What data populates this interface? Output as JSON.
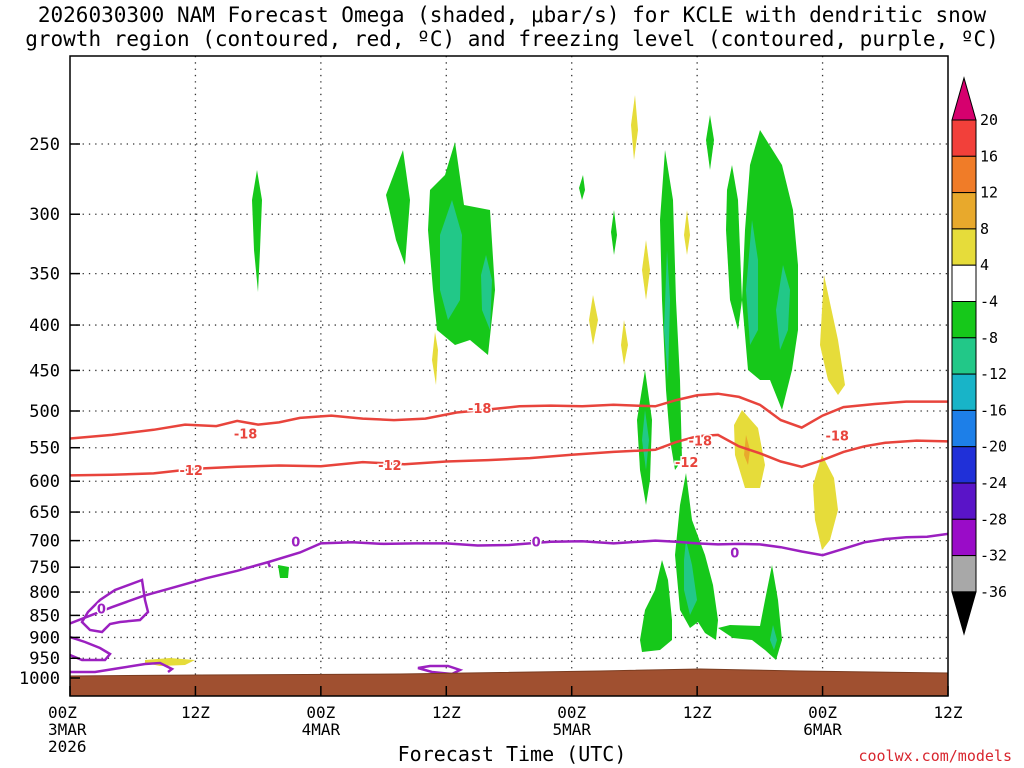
{
  "title_line1": "2026030300 NAM Forecast Omega (shaded, μbar/s) for KCLE with dendritic snow",
  "title_line2": "growth region (contoured, red, ºC) and freezing level (contoured, purple, ºC)",
  "credit": "coolwx.com/models",
  "chart_data": {
    "type": "heatmap",
    "xlabel": "Forecast Time (UTC)",
    "x_ticks": [
      {
        "hour": 0,
        "lines": [
          "00Z",
          "3MAR",
          "2026"
        ]
      },
      {
        "hour": 12,
        "lines": [
          "12Z"
        ]
      },
      {
        "hour": 24,
        "lines": [
          "00Z",
          "4MAR"
        ]
      },
      {
        "hour": 36,
        "lines": [
          "12Z"
        ]
      },
      {
        "hour": 48,
        "lines": [
          "00Z",
          "5MAR"
        ]
      },
      {
        "hour": 60,
        "lines": [
          "12Z"
        ]
      },
      {
        "hour": 72,
        "lines": [
          "00Z",
          "6MAR"
        ]
      },
      {
        "hour": 84,
        "lines": [
          "12Z"
        ]
      }
    ],
    "xlim": [
      0,
      84
    ],
    "y_ticks": [
      250,
      300,
      350,
      400,
      450,
      500,
      550,
      600,
      650,
      700,
      750,
      800,
      850,
      900,
      950,
      1000
    ],
    "y_axis": "pressure (hPa), inverted",
    "colorbar": {
      "labels": [
        20,
        16,
        12,
        8,
        4,
        -4,
        -8,
        -12,
        -16,
        -20,
        -24,
        -28,
        -32,
        -36
      ],
      "colors": [
        "#d6006e",
        "#f2403a",
        "#f07c28",
        "#e8a92c",
        "#e6dc3a",
        "#ffffff",
        "#16c81a",
        "#22c888",
        "#18b4c8",
        "#1d7fe8",
        "#2030d8",
        "#5a14c8",
        "#9a0cc8",
        "#a8a8a8",
        "#000000"
      ]
    },
    "contour_labels": [
      {
        "text": "-18",
        "hour": 16.8,
        "p": 530,
        "color": "#e8443c"
      },
      {
        "text": "-18",
        "hour": 39.2,
        "p": 496,
        "color": "#e8443c"
      },
      {
        "text": "-18",
        "hour": 60.3,
        "p": 540,
        "color": "#e8443c"
      },
      {
        "text": "-18",
        "hour": 73.4,
        "p": 533,
        "color": "#e8443c"
      },
      {
        "text": "-12",
        "hour": 11.6,
        "p": 583,
        "color": "#e8443c"
      },
      {
        "text": "-12",
        "hour": 30.6,
        "p": 575,
        "color": "#e8443c"
      },
      {
        "text": "-12",
        "hour": 59.0,
        "p": 571,
        "color": "#e8443c"
      },
      {
        "text": "0",
        "hour": 3.0,
        "p": 835,
        "color": "#9b20c0"
      },
      {
        "text": "0",
        "hour": 21.6,
        "p": 702,
        "color": "#9b20c0"
      },
      {
        "text": "0",
        "hour": 44.6,
        "p": 702,
        "color": "#9b20c0"
      },
      {
        "text": "0",
        "hour": 63.6,
        "p": 722,
        "color": "#9b20c0"
      }
    ],
    "series": [
      {
        "name": "-18",
        "color": "#e8443c",
        "points": [
          [
            0,
            537
          ],
          [
            4,
            532
          ],
          [
            8,
            525
          ],
          [
            11,
            518
          ],
          [
            14,
            520
          ],
          [
            16,
            513
          ],
          [
            18,
            518
          ],
          [
            20,
            515
          ],
          [
            22,
            509
          ],
          [
            25,
            506
          ],
          [
            28,
            510
          ],
          [
            31,
            512
          ],
          [
            34,
            510
          ],
          [
            37,
            502
          ],
          [
            40,
            498
          ],
          [
            43,
            494
          ],
          [
            46,
            493
          ],
          [
            49,
            494
          ],
          [
            52,
            492
          ],
          [
            56,
            494
          ],
          [
            58,
            486
          ],
          [
            60,
            480
          ],
          [
            62,
            478
          ],
          [
            64,
            482
          ],
          [
            66,
            492
          ],
          [
            68,
            512
          ],
          [
            70,
            522
          ],
          [
            72,
            506
          ],
          [
            74,
            495
          ],
          [
            77,
            491
          ],
          [
            80,
            488
          ],
          [
            84,
            488
          ]
        ]
      },
      {
        "name": "-12",
        "color": "#e8443c",
        "points": [
          [
            0,
            591
          ],
          [
            4,
            590
          ],
          [
            8,
            588
          ],
          [
            12,
            581
          ],
          [
            16,
            578
          ],
          [
            20,
            576
          ],
          [
            24,
            577
          ],
          [
            28,
            571
          ],
          [
            32,
            574
          ],
          [
            36,
            570
          ],
          [
            40,
            568
          ],
          [
            44,
            565
          ],
          [
            48,
            560
          ],
          [
            52,
            556
          ],
          [
            56,
            553
          ],
          [
            58,
            542
          ],
          [
            60,
            534
          ],
          [
            62,
            532
          ],
          [
            64,
            548
          ],
          [
            66,
            558
          ],
          [
            68,
            570
          ],
          [
            70,
            578
          ],
          [
            72,
            568
          ],
          [
            74,
            556
          ],
          [
            76,
            548
          ],
          [
            78,
            543
          ],
          [
            81,
            540
          ],
          [
            84,
            541
          ]
        ]
      },
      {
        "name": "0",
        "color": "#9b20c0",
        "points": [
          [
            0,
            868
          ],
          [
            4,
            832
          ],
          [
            7,
            808
          ],
          [
            10,
            790
          ],
          [
            13,
            772
          ],
          [
            16,
            757
          ],
          [
            19,
            740
          ],
          [
            22,
            722
          ],
          [
            24,
            705
          ],
          [
            27,
            703
          ],
          [
            30,
            706
          ],
          [
            33,
            705
          ],
          [
            36,
            705
          ],
          [
            39,
            709
          ],
          [
            42,
            708
          ],
          [
            46,
            702
          ],
          [
            49,
            701
          ],
          [
            52,
            705
          ],
          [
            56,
            700
          ],
          [
            58,
            702
          ],
          [
            60,
            705
          ],
          [
            62,
            707
          ],
          [
            64,
            706
          ],
          [
            66,
            707
          ],
          [
            68,
            712
          ],
          [
            70,
            720
          ],
          [
            72,
            727
          ],
          [
            74,
            715
          ],
          [
            76,
            703
          ],
          [
            78,
            697
          ],
          [
            80,
            694
          ],
          [
            82,
            693
          ],
          [
            84,
            688
          ]
        ]
      }
    ]
  }
}
